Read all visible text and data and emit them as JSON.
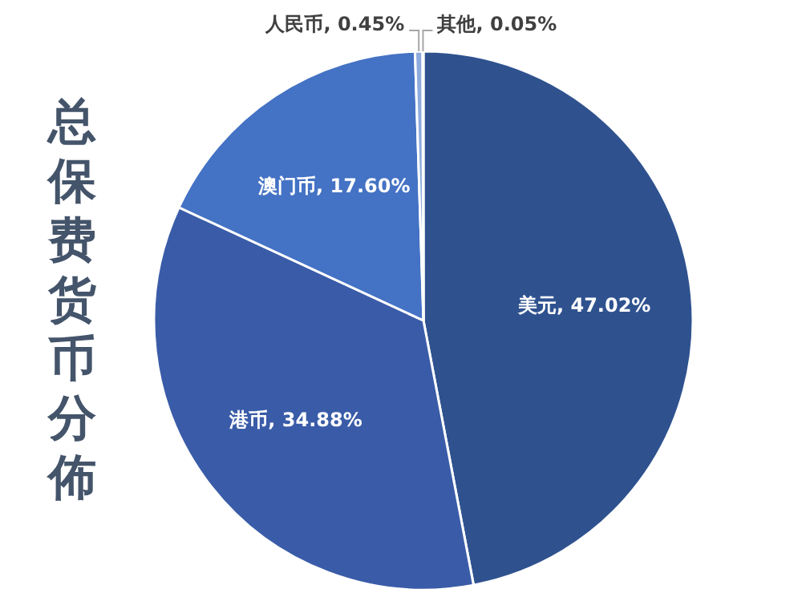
{
  "chart_data": {
    "type": "pie",
    "title": "总保费货币分佈",
    "categories": [
      "美元",
      "港币",
      "澳门币",
      "人民币",
      "其他"
    ],
    "values": [
      47.02,
      34.88,
      17.6,
      0.45,
      0.05
    ],
    "value_labels": [
      "47.02%",
      "34.88%",
      "17.60%",
      "0.45%",
      "0.05%"
    ],
    "colors": [
      "#2f528f",
      "#3a5ca8",
      "#4472c4",
      "#8faadc",
      "#b4c7e7"
    ]
  }
}
